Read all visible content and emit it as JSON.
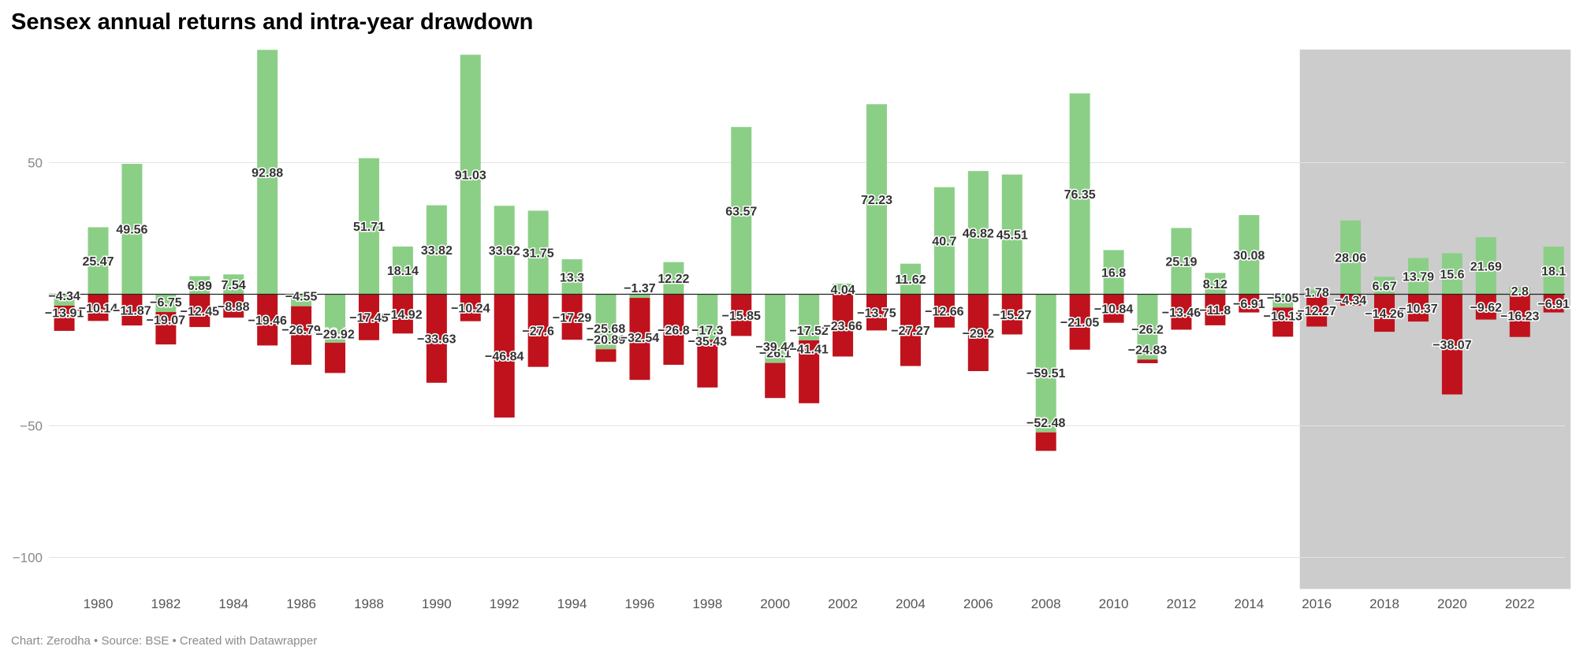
{
  "title": "Sensex annual returns and intra-year drawdown",
  "footer": "Chart: Zerodha • Source: BSE • Created with Datawrapper",
  "colors": {
    "positive": "#8bcf87",
    "negative": "#c0121c",
    "highlight_band": "#cccccc"
  },
  "chart_data": {
    "type": "bar",
    "years": [
      1979,
      1980,
      1981,
      1982,
      1983,
      1984,
      1985,
      1986,
      1987,
      1988,
      1989,
      1990,
      1991,
      1992,
      1993,
      1994,
      1995,
      1996,
      1997,
      1998,
      1999,
      2000,
      2001,
      2002,
      2003,
      2004,
      2005,
      2006,
      2007,
      2008,
      2009,
      2010,
      2011,
      2012,
      2013,
      2014,
      2015,
      2016,
      2017,
      2018,
      2019,
      2020,
      2021,
      2022,
      2023
    ],
    "series": [
      {
        "values": [
          -4.34,
          25.47,
          49.56,
          -6.75,
          6.89,
          7.54,
          92.88,
          -4.55,
          -18.43,
          51.71,
          18.14,
          33.82,
          91.03,
          33.62,
          31.75,
          13.3,
          -20.89,
          -1.37,
          12.22,
          -17.3,
          63.57,
          -26.1,
          -17.52,
          4.04,
          72.23,
          11.62,
          40.7,
          46.82,
          45.51,
          -52.48,
          76.35,
          16.8,
          -24.83,
          25.19,
          8.12,
          30.08,
          -5.05,
          1.78,
          28.06,
          6.67,
          13.79,
          15.6,
          21.69,
          2.8,
          18.1
        ]
      },
      {
        "values": [
          -13.91,
          -10.14,
          -11.87,
          -19.07,
          -12.45,
          -8.88,
          -19.46,
          -26.79,
          -29.92,
          -17.45,
          -14.92,
          -33.63,
          -10.24,
          -46.84,
          -27.6,
          -17.29,
          -25.68,
          -32.54,
          -26.8,
          -35.43,
          -15.85,
          -39.44,
          -41.41,
          -23.66,
          -13.75,
          -27.27,
          -12.66,
          -29.2,
          -15.27,
          -59.51,
          -21.05,
          -10.84,
          -26.2,
          -13.46,
          -11.8,
          -6.91,
          -16.13,
          -12.27,
          -4.34,
          -14.26,
          -10.37,
          -38.07,
          -9.62,
          -16.23,
          -6.91
        ]
      }
    ],
    "x_tick_labels": [
      "1980",
      "1982",
      "1984",
      "1986",
      "1988",
      "1990",
      "1992",
      "1994",
      "1996",
      "1998",
      "2000",
      "2002",
      "2004",
      "2006",
      "2008",
      "2010",
      "2012",
      "2014",
      "2016",
      "2018",
      "2020",
      "2022"
    ],
    "y_ticks": [
      50,
      -50,
      -100
    ],
    "ylim": [
      -112,
      93
    ],
    "shaded_region_years": [
      2016,
      2023
    ],
    "grid": true,
    "title": "Sensex annual returns and intra-year drawdown",
    "xlabel": "",
    "ylabel": ""
  }
}
